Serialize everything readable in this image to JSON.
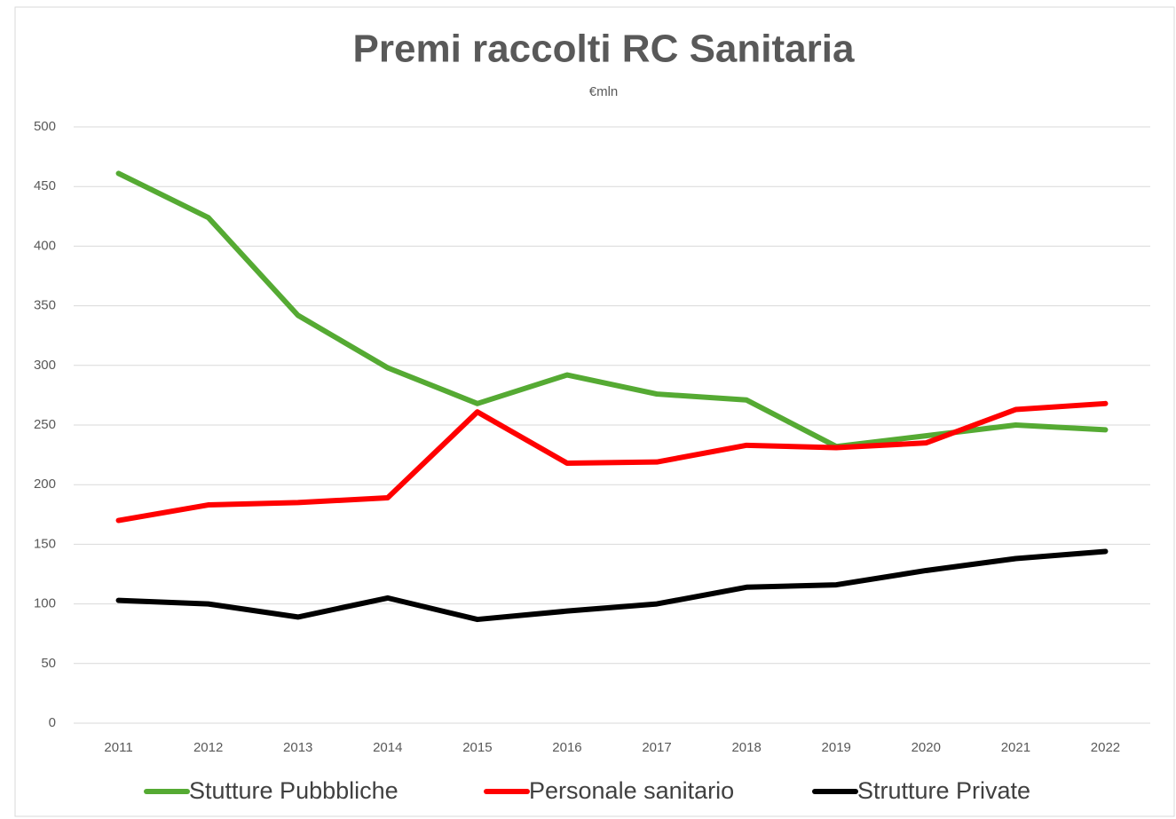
{
  "chart_data": {
    "type": "line",
    "title": "Premi raccolti RC Sanitaria",
    "subtitle": "€mln",
    "categories": [
      "2011",
      "2012",
      "2013",
      "2014",
      "2015",
      "2016",
      "2017",
      "2018",
      "2019",
      "2020",
      "2021",
      "2022"
    ],
    "series": [
      {
        "name": "Stutture Pubbbliche",
        "color": "#55aa33",
        "values": [
          461,
          424,
          342,
          298,
          268,
          292,
          276,
          271,
          232,
          241,
          250,
          246
        ]
      },
      {
        "name": "Personale sanitario",
        "color": "#ff0000",
        "values": [
          170,
          183,
          185,
          189,
          261,
          218,
          219,
          233,
          231,
          235,
          263,
          268
        ]
      },
      {
        "name": "Strutture Private",
        "color": "#000000",
        "values": [
          103,
          100,
          89,
          105,
          87,
          94,
          100,
          114,
          116,
          128,
          138,
          144
        ]
      }
    ],
    "ylim": [
      0,
      500
    ],
    "yticks": [
      0,
      50,
      100,
      150,
      200,
      250,
      300,
      350,
      400,
      450,
      500
    ],
    "grid": true,
    "legend": "bottom"
  }
}
